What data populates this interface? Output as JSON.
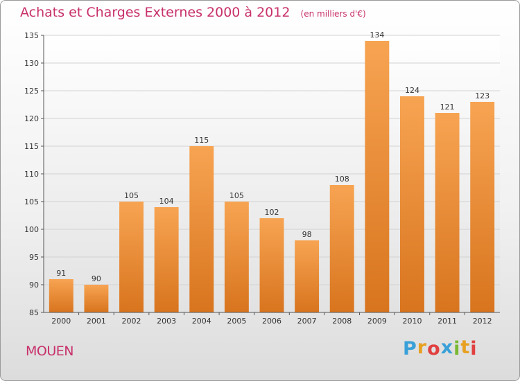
{
  "chart_data": {
    "type": "bar",
    "title": "Achats et Charges Externes 2000 à 2012",
    "subtitle": "(en milliers d'€)",
    "categories": [
      "2000",
      "2001",
      "2002",
      "2003",
      "2004",
      "2005",
      "2006",
      "2007",
      "2008",
      "2009",
      "2010",
      "2011",
      "2012"
    ],
    "values": [
      91,
      90,
      105,
      104,
      115,
      105,
      102,
      98,
      108,
      134,
      124,
      121,
      123
    ],
    "ylim": [
      85,
      135
    ],
    "yticks": [
      85,
      90,
      95,
      100,
      105,
      110,
      115,
      120,
      125,
      130,
      135
    ],
    "grid": true,
    "legend": "none",
    "colors": {
      "bar_top": "#f7a452",
      "bar_bottom": "#d8741e",
      "title": "#c8306a"
    }
  },
  "location": "MOUEN",
  "logo": {
    "text": "Proxiti",
    "letters": [
      "P",
      "r",
      "o",
      "x",
      "i",
      "t",
      "i"
    ],
    "colors": [
      "#3aa0d8",
      "#e8a020",
      "#e04040",
      "#3aa0d8",
      "#78b832",
      "#e8a020",
      "#e04040"
    ]
  }
}
